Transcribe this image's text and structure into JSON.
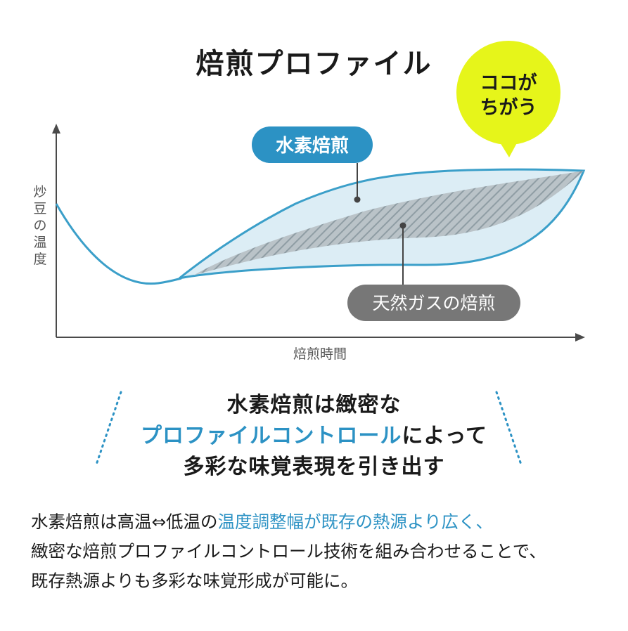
{
  "title": "焙煎プロファイル",
  "diagram": {
    "y_axis_label": [
      "炒",
      "豆",
      "の",
      "温",
      "度"
    ],
    "x_axis_label": "焙煎時間",
    "hydrogen_label": "水素焙煎",
    "gas_label": "天然ガスの焙煎",
    "callout": [
      "ココが",
      "ちがう"
    ],
    "colors": {
      "hydrogen": "#2c92c4",
      "hydrogen_fill": "#dcedf5",
      "gas": "#777777",
      "gas_hatch": "#8f9da4",
      "callout": "#e6f51a",
      "axis": "#4a4a4a"
    }
  },
  "summary": {
    "line1": "水素焙煎は緻密な",
    "line2_accent": "プロファイルコントロール",
    "line2_rest": "によって",
    "line3": "多彩な味覚表現を引き出す"
  },
  "body": {
    "line1_pre": "水素焙煎は高温⇔低温の",
    "line1_accent": "温度調整幅が既存の熱源より広く、",
    "line2": "緻密な焙煎プロファイルコントロール技術を組み合わせることで、",
    "line3": "既存熱源よりも多彩な味覚形成が可能に。"
  }
}
